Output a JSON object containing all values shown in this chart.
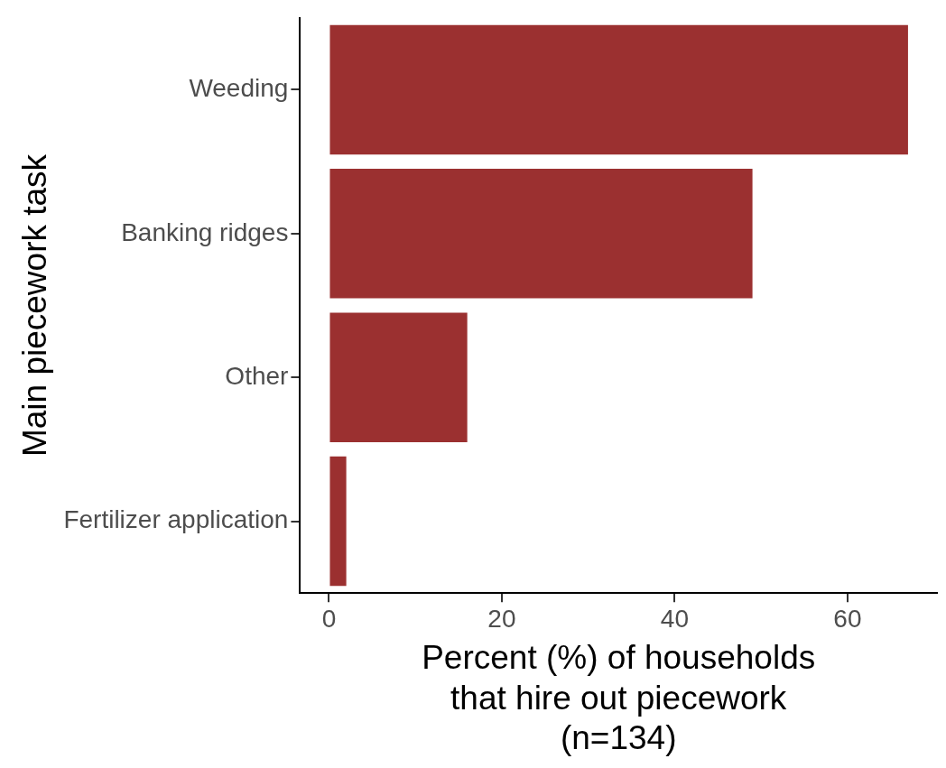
{
  "chart_data": {
    "type": "bar",
    "orientation": "horizontal",
    "categories": [
      "Weeding",
      "Banking ridges",
      "Other",
      "Fertilizer application"
    ],
    "values": [
      67,
      49,
      16,
      2
    ],
    "color": "#9b3030",
    "xlim": [
      -3.35,
      70.35
    ],
    "xticks": [
      0,
      20,
      40,
      60
    ],
    "xlabel": "Percent (%) of households\nthat hire out piecework\n(n=134)",
    "ylabel": "Main piecework task",
    "grid": false,
    "legend": false
  }
}
